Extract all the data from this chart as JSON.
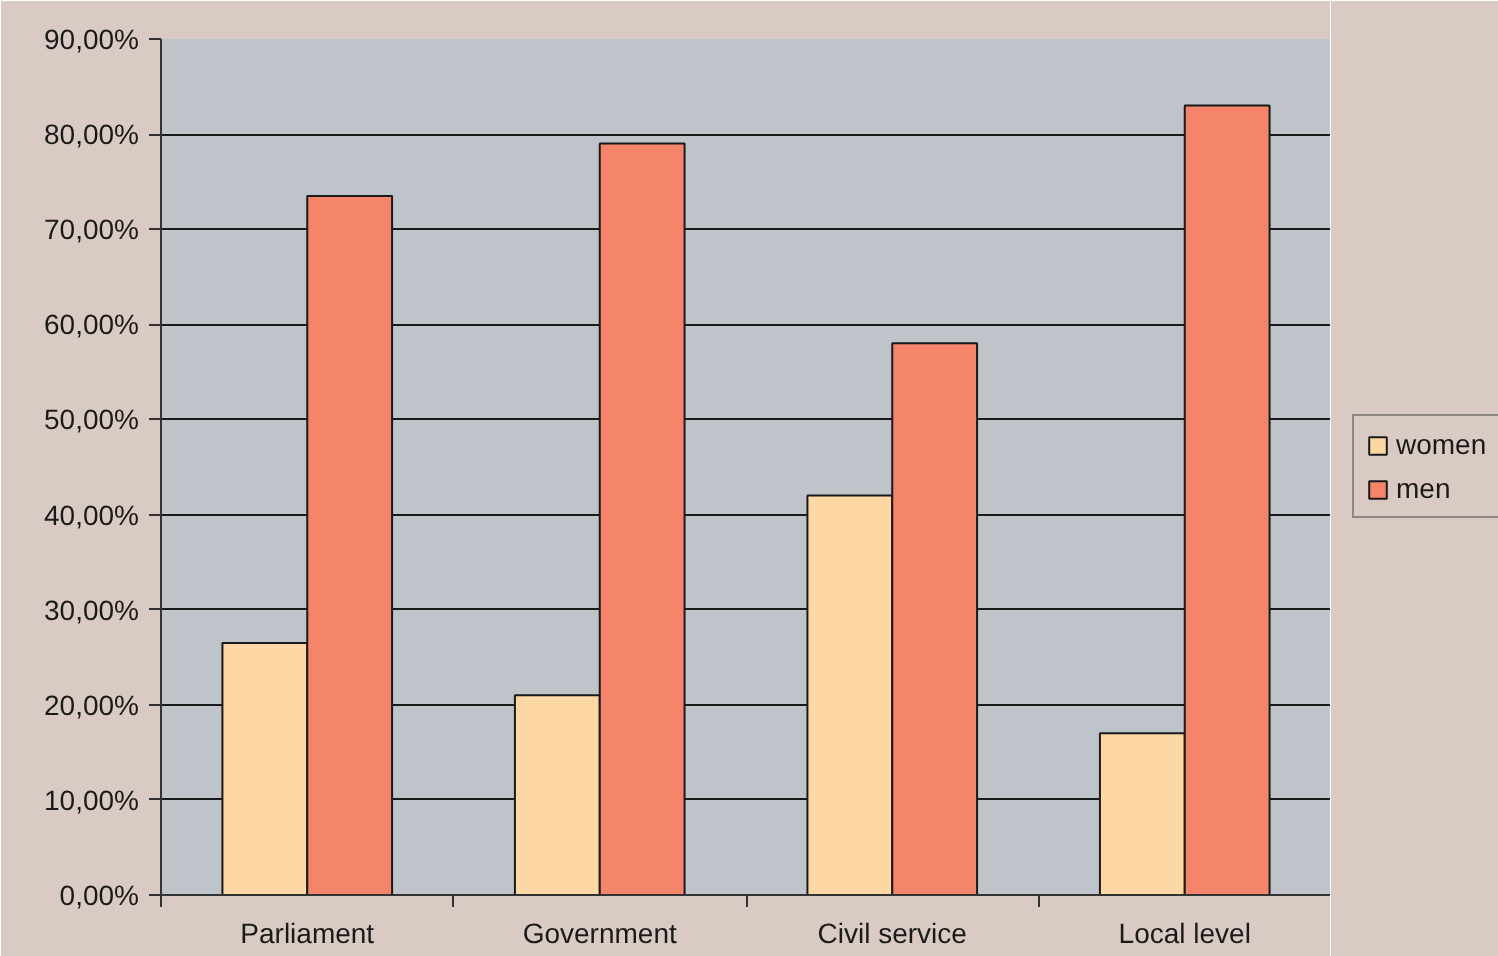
{
  "chart_data": {
    "type": "bar",
    "categories": [
      "Parliament",
      "Government",
      "Civil service",
      "Local level"
    ],
    "series": [
      {
        "name": "women",
        "color": "#fdd7a4",
        "values": [
          26.5,
          21,
          42,
          17
        ]
      },
      {
        "name": "men",
        "color": "#f4846a",
        "values": [
          73.5,
          79,
          58,
          83
        ]
      }
    ],
    "ylim": [
      0,
      90
    ],
    "yticks": [
      {
        "value": 0,
        "label": "0,00%"
      },
      {
        "value": 10,
        "label": "10,00%"
      },
      {
        "value": 20,
        "label": "20,00%"
      },
      {
        "value": 30,
        "label": "30,00%"
      },
      {
        "value": 40,
        "label": "40,00%"
      },
      {
        "value": 50,
        "label": "50,00%"
      },
      {
        "value": 60,
        "label": "60,00%"
      },
      {
        "value": 70,
        "label": "70,00%"
      },
      {
        "value": 80,
        "label": "80,00%"
      },
      {
        "value": 90,
        "label": "90,00%"
      }
    ],
    "grid": "y",
    "legend": "right"
  }
}
